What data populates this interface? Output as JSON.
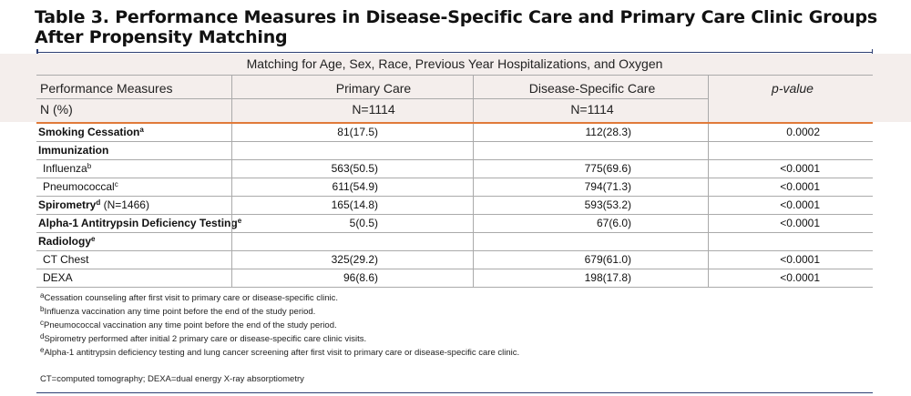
{
  "title": "Table 3. Performance Measures in Disease-Specific Care and Primary Care Clinic Groups After Propensity Matching",
  "subheader": "Matching for Age, Sex, Race, Previous Year Hospitalizations, and Oxygen",
  "columns": {
    "measure": "Performance Measures",
    "measure_sub": "N (%)",
    "primary_care": "Primary Care",
    "primary_care_n": "N=1114",
    "disease_specific": "Disease-Specific Care",
    "disease_specific_n": "N=1114",
    "pvalue": "p-value"
  },
  "rows": [
    {
      "label": "Smoking Cessation",
      "sup": "a",
      "extra": "",
      "bold": true,
      "indent": false,
      "primary": "81(17.5)",
      "disease": "112(28.3)",
      "p": "0.0002"
    },
    {
      "label": "Immunization",
      "sup": "",
      "extra": "",
      "bold": true,
      "indent": false,
      "primary": "",
      "disease": "",
      "p": ""
    },
    {
      "label": "Influenza",
      "sup": "b",
      "extra": "",
      "bold": false,
      "indent": true,
      "primary": "563(50.5)",
      "disease": "775(69.6)",
      "p": "<0.0001"
    },
    {
      "label": "Pneumococcal",
      "sup": "c",
      "extra": "",
      "bold": false,
      "indent": true,
      "primary": "611(54.9)",
      "disease": "794(71.3)",
      "p": "<0.0001"
    },
    {
      "label": "Spirometry",
      "sup": "d",
      "extra": " (N=1466)",
      "bold": true,
      "indent": false,
      "primary": "165(14.8)",
      "disease": "593(53.2)",
      "p": "<0.0001"
    },
    {
      "label": "Alpha-1 Antitrypsin Deficiency Testing",
      "sup": "e",
      "extra": "",
      "bold": true,
      "indent": false,
      "primary": "5(0.5)",
      "disease": "67(6.0)",
      "p": "<0.0001"
    },
    {
      "label": "Radiology",
      "sup": "e",
      "extra": "",
      "bold": true,
      "indent": false,
      "primary": "",
      "disease": "",
      "p": ""
    },
    {
      "label": "CT Chest",
      "sup": "",
      "extra": "",
      "bold": false,
      "indent": true,
      "primary": "325(29.2)",
      "disease": "679(61.0)",
      "p": "<0.0001"
    },
    {
      "label": "DEXA",
      "sup": "",
      "extra": "",
      "bold": false,
      "indent": true,
      "primary": "96(8.6)",
      "disease": "198(17.8)",
      "p": "<0.0001"
    }
  ],
  "footnotes": [
    {
      "mark": "a",
      "text": "Cessation counseling after first visit to primary care or disease-specific clinic."
    },
    {
      "mark": "b",
      "text": "Influenza vaccination any time point before the end of the study period."
    },
    {
      "mark": "c",
      "text": "Pneumococcal vaccination any time point before the end of the study period."
    },
    {
      "mark": "d",
      "text": "Spirometry performed after initial 2 primary care or disease-specific care clinic visits."
    },
    {
      "mark": "e",
      "text": "Alpha-1 antitrypsin deficiency testing and lung cancer screening after first visit to primary care or disease-specific care clinic."
    }
  ],
  "abbreviations": "CT=computed tomography; DEXA=dual energy X-ray absorptiometry",
  "colors": {
    "accent_rule": "#e07a3a",
    "title_rule": "#2d3f73",
    "header_band": "#f4eeec"
  }
}
